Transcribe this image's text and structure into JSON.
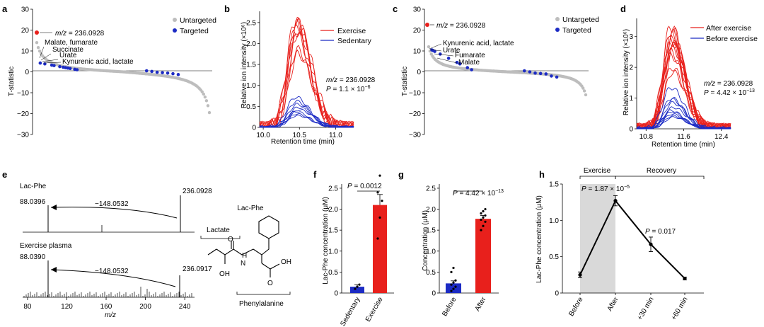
{
  "colors": {
    "red": "#e8201c",
    "blue": "#1c2bc4",
    "gray": "#bdbdbd",
    "shade": "#d9d9d9"
  },
  "chart_data": [
    {
      "panel": "a",
      "type": "scatter",
      "ylabel": "T-statistic",
      "yticks": [
        "30",
        "20",
        "10",
        "0",
        "−10",
        "−20",
        "−30"
      ],
      "ylim": [
        -30,
        30
      ],
      "legend": [
        "Untargeted",
        "Targeted"
      ],
      "highlight": {
        "label": "m/z = 236.0928",
        "value": 18.3
      },
      "annotations": [
        "Malate, fumarate",
        "Succinate",
        "Urate",
        "Kynurenic acid, lactate"
      ],
      "targeted_values": [
        4.2,
        3.8,
        3.2,
        3.0,
        2.5,
        2.2,
        2.0,
        1.8,
        1.6,
        1.2,
        1.0,
        0.5,
        0.2,
        -0.2,
        -0.4,
        -0.6,
        -0.9,
        -1.3
      ],
      "untargeted_range": [
        -19.5,
        14
      ]
    },
    {
      "panel": "b",
      "type": "line",
      "ylabel": "Relative ion intensity (×10⁶)",
      "xlabel": "Retention time (min)",
      "xticks": [
        "10.0",
        "10.5",
        "11.0"
      ],
      "yticks": [
        "0",
        "0.5",
        "1.0",
        "1.5",
        "2.0",
        "2.5"
      ],
      "xlim": [
        9.95,
        11.25
      ],
      "ylim": [
        0,
        2.7
      ],
      "legend": [
        "Exercise",
        "Sedentary"
      ],
      "annotation": {
        "mz": "m/z = 236.0928",
        "p": "P = 1.1 × 10⁻⁶"
      },
      "series": [
        {
          "name": "Exercise",
          "peaks": [
            2.55,
            2.5,
            2.45,
            2.42,
            2.38,
            2.3,
            2.2,
            1.85,
            1.75
          ]
        },
        {
          "name": "Sedentary",
          "peaks": [
            0.72,
            0.62,
            0.55,
            0.48,
            0.42,
            0.38,
            0.32,
            0.28
          ]
        }
      ]
    },
    {
      "panel": "c",
      "type": "scatter",
      "ylabel": "T-statistic",
      "yticks": [
        "30",
        "20",
        "10",
        "0",
        "−10",
        "−20",
        "−30"
      ],
      "ylim": [
        -30,
        30
      ],
      "legend": [
        "Untargeted",
        "Targeted"
      ],
      "highlight": {
        "label": "m/z = 236.0928",
        "value": 22
      },
      "annotations": [
        "Kynurenic acid, lactate",
        "Urate",
        "Fumarate",
        "Malate"
      ],
      "targeted_values": [
        10.5,
        10.2,
        9.8,
        8.5,
        6.5,
        4.5,
        3.8,
        2.0,
        1.0,
        0.5,
        0.0,
        -0.6,
        -0.8,
        -1.0,
        -2.0,
        -2.5
      ],
      "untargeted_range": [
        -11,
        12
      ]
    },
    {
      "panel": "d",
      "type": "line",
      "ylabel": "Relative ion intensity (×10⁶)",
      "xlabel": "Retention time (min)",
      "xticks": [
        "10.8",
        "11.6",
        "12.4"
      ],
      "yticks": [
        "0",
        "1",
        "2",
        "3"
      ],
      "xlim": [
        10.6,
        12.6
      ],
      "ylim": [
        0,
        3.5
      ],
      "legend": [
        "After exercise",
        "Before exercise"
      ],
      "annotation": {
        "mz": "m/z = 236.0928",
        "p": "P = 4.42 × 10⁻¹³"
      },
      "series": [
        {
          "name": "After exercise",
          "peaks": [
            3.35,
            3.25,
            3.1,
            3.0,
            2.95,
            2.9,
            2.85,
            2.8,
            2.7,
            2.6,
            2.5,
            2.4,
            2.0,
            1.85
          ]
        },
        {
          "name": "Before exercise",
          "peaks": [
            1.35,
            1.0,
            0.95,
            0.85,
            0.7,
            0.6,
            0.55,
            0.48,
            0.42,
            0.38
          ]
        }
      ]
    },
    {
      "panel": "e",
      "type": "spectrum",
      "xlabel": "m/z",
      "xticks": [
        "80",
        "120",
        "160",
        "200",
        "240"
      ],
      "xlim": [
        75,
        250
      ],
      "spectra": [
        {
          "title": "Lac-Phe",
          "peaks": [
            {
              "mz": 88.0396,
              "label": "88.0396"
            },
            {
              "mz": 236.0928,
              "label": "236.0928"
            }
          ],
          "shift": "−148.0532"
        },
        {
          "title": "Exercise plasma",
          "peaks": [
            {
              "mz": 88.039,
              "label": "88.0390"
            },
            {
              "mz": 236.0917,
              "label": "236.0917"
            }
          ],
          "shift": "−148.0532"
        }
      ],
      "structure": {
        "title": "Lac-Phe",
        "fragments": [
          "Lactate",
          "Phenylalanine"
        ],
        "atoms": [
          "OH",
          "O",
          "H",
          "N",
          "OH",
          "O"
        ]
      }
    },
    {
      "panel": "f",
      "type": "bar",
      "ylabel": "Lac-Phe concentration (μM)",
      "categories": [
        "Sedentary",
        "Exercise"
      ],
      "values": [
        0.15,
        2.1
      ],
      "errors": [
        0.05,
        0.25
      ],
      "yticks": [
        "0",
        "0.5",
        "1.0",
        "1.5",
        "2.0",
        "2.5"
      ],
      "ylim": [
        0,
        2.6
      ],
      "p": "P = 0.0012",
      "points": [
        [
          0.1,
          0.15,
          0.2
        ],
        [
          1.3,
          1.8,
          2.2,
          2.4,
          2.8
        ]
      ]
    },
    {
      "panel": "g",
      "type": "bar",
      "ylabel": "Concentration (μM)",
      "categories": [
        "Before",
        "After"
      ],
      "values": [
        0.23,
        1.77
      ],
      "errors": [
        0.06,
        0.08
      ],
      "yticks": [
        "0",
        "0.5",
        "1.0",
        "1.5",
        "2.0",
        "2.5"
      ],
      "ylim": [
        0,
        2.6
      ],
      "p": "P = 4.42 × 10⁻¹³",
      "points": [
        [
          0.05,
          0.1,
          0.15,
          0.2,
          0.25,
          0.3,
          0.5,
          0.6
        ],
        [
          1.5,
          1.6,
          1.7,
          1.75,
          1.8,
          1.85,
          1.9,
          1.95,
          2.0
        ]
      ]
    },
    {
      "panel": "h",
      "type": "line",
      "ylabel": "Lac-Phe concentration (μM)",
      "categories": [
        "Before",
        "After",
        "+30 min",
        "+60 min"
      ],
      "values": [
        0.25,
        1.27,
        0.67,
        0.2
      ],
      "errors": [
        0.04,
        0.07,
        0.1,
        0.02
      ],
      "yticks": [
        "0",
        "0.5",
        "1.0",
        "1.5"
      ],
      "ylim": [
        0,
        1.5
      ],
      "phases": [
        "Exercise",
        "Recovery"
      ],
      "p_labels": [
        "P = 1.87 × 10⁻⁵",
        "P = 0.017"
      ]
    }
  ]
}
